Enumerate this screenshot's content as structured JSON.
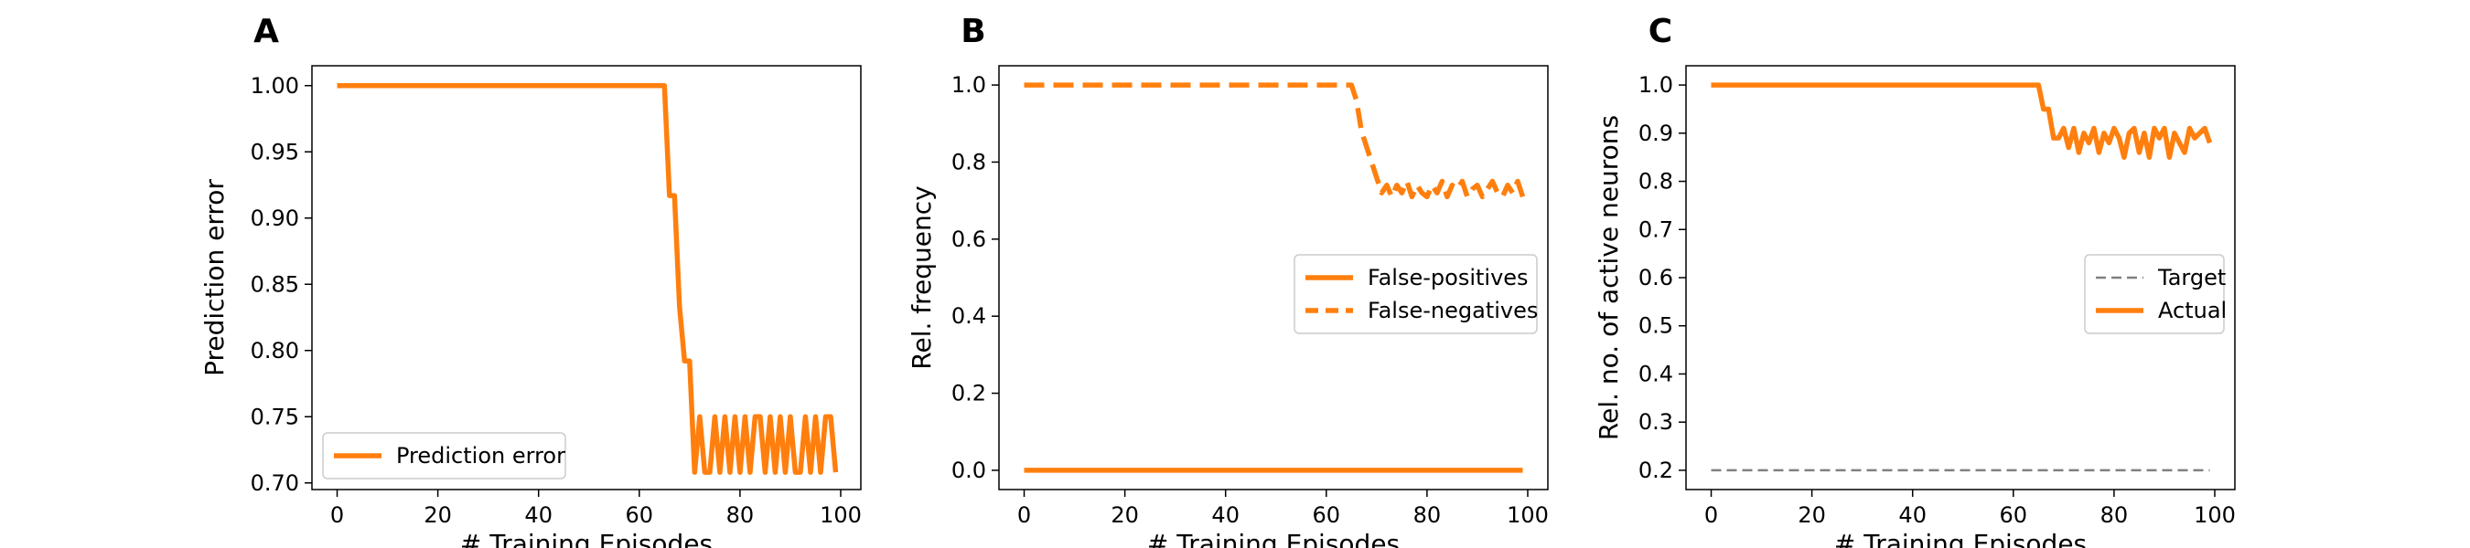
{
  "figure": {
    "colors": {
      "series": "#ff7f0e",
      "target": "#808080",
      "axis": "#000000"
    }
  },
  "chart_data": [
    {
      "panel_label": "A",
      "type": "line",
      "xlabel": "# Training Episodes",
      "ylabel": "Prediction error",
      "xlim": [
        -5,
        104
      ],
      "ylim": [
        0.695,
        1.015
      ],
      "xticks": [
        0,
        20,
        40,
        60,
        80,
        100
      ],
      "yticks": [
        0.7,
        0.75,
        0.8,
        0.85,
        0.9,
        0.95,
        1.0
      ],
      "ytick_labels": [
        "0.70",
        "0.75",
        "0.80",
        "0.85",
        "0.90",
        "0.95",
        "1.00"
      ],
      "legend": {
        "loc": "lower left"
      },
      "series": [
        {
          "name": "Prediction error",
          "style": "solid",
          "x": [
            0,
            65,
            66,
            67,
            68,
            69,
            70,
            71,
            72,
            73,
            74,
            75,
            76,
            77,
            78,
            79,
            80,
            81,
            82,
            83,
            84,
            85,
            86,
            87,
            88,
            89,
            90,
            91,
            92,
            93,
            94,
            95,
            96,
            97,
            98,
            99
          ],
          "y": [
            1.0,
            1.0,
            0.917,
            0.917,
            0.833,
            0.792,
            0.792,
            0.708,
            0.75,
            0.708,
            0.708,
            0.75,
            0.708,
            0.75,
            0.708,
            0.75,
            0.708,
            0.75,
            0.708,
            0.75,
            0.75,
            0.708,
            0.75,
            0.708,
            0.75,
            0.708,
            0.75,
            0.708,
            0.708,
            0.75,
            0.708,
            0.75,
            0.708,
            0.75,
            0.75,
            0.708
          ]
        }
      ]
    },
    {
      "panel_label": "B",
      "type": "line",
      "xlabel": "# Training Episodes",
      "ylabel": "Rel. frequency",
      "xlim": [
        -5,
        104
      ],
      "ylim": [
        -0.05,
        1.05
      ],
      "xticks": [
        0,
        20,
        40,
        60,
        80,
        100
      ],
      "yticks": [
        0.0,
        0.2,
        0.4,
        0.6,
        0.8,
        1.0
      ],
      "ytick_labels": [
        "0.0",
        "0.2",
        "0.4",
        "0.6",
        "0.8",
        "1.0"
      ],
      "legend": {
        "loc": "center right"
      },
      "series": [
        {
          "name": "False-positives",
          "style": "solid",
          "x": [
            0,
            99
          ],
          "y": [
            0.0,
            0.0
          ]
        },
        {
          "name": "False-negatives",
          "style": "dashed",
          "x": [
            0,
            65,
            66,
            67,
            68,
            69,
            70,
            71,
            72,
            73,
            74,
            75,
            76,
            77,
            78,
            79,
            80,
            81,
            82,
            83,
            84,
            85,
            86,
            87,
            88,
            89,
            90,
            91,
            92,
            93,
            94,
            95,
            96,
            97,
            98,
            99
          ],
          "y": [
            1.0,
            1.0,
            0.96,
            0.88,
            0.84,
            0.8,
            0.76,
            0.72,
            0.74,
            0.71,
            0.74,
            0.72,
            0.75,
            0.71,
            0.74,
            0.72,
            0.71,
            0.74,
            0.72,
            0.75,
            0.71,
            0.74,
            0.73,
            0.75,
            0.71,
            0.73,
            0.74,
            0.71,
            0.73,
            0.75,
            0.72,
            0.71,
            0.74,
            0.72,
            0.75,
            0.71
          ]
        }
      ]
    },
    {
      "panel_label": "C",
      "type": "line",
      "xlabel": "# Training Episodes",
      "ylabel": "Rel. no. of active neurons",
      "xlim": [
        -5,
        104
      ],
      "ylim": [
        0.16,
        1.04
      ],
      "xticks": [
        0,
        20,
        40,
        60,
        80,
        100
      ],
      "yticks": [
        0.2,
        0.3,
        0.4,
        0.5,
        0.6,
        0.7,
        0.8,
        0.9,
        1.0
      ],
      "ytick_labels": [
        "0.2",
        "0.3",
        "0.4",
        "0.5",
        "0.6",
        "0.7",
        "0.8",
        "0.9",
        "1.0"
      ],
      "legend": {
        "loc": "center right"
      },
      "series": [
        {
          "name": "Target",
          "style": "dashed-thin",
          "x": [
            0,
            99
          ],
          "y": [
            0.2,
            0.2
          ]
        },
        {
          "name": "Actual",
          "style": "solid",
          "x": [
            0,
            65,
            66,
            67,
            68,
            69,
            70,
            71,
            72,
            73,
            74,
            75,
            76,
            77,
            78,
            79,
            80,
            81,
            82,
            83,
            84,
            85,
            86,
            87,
            88,
            89,
            90,
            91,
            92,
            93,
            94,
            95,
            96,
            97,
            98,
            99
          ],
          "y": [
            1.0,
            1.0,
            0.95,
            0.95,
            0.89,
            0.89,
            0.91,
            0.87,
            0.91,
            0.86,
            0.9,
            0.88,
            0.91,
            0.86,
            0.9,
            0.88,
            0.91,
            0.89,
            0.85,
            0.9,
            0.91,
            0.86,
            0.9,
            0.85,
            0.91,
            0.89,
            0.91,
            0.85,
            0.9,
            0.88,
            0.86,
            0.91,
            0.89,
            0.9,
            0.91,
            0.88
          ]
        }
      ]
    }
  ]
}
